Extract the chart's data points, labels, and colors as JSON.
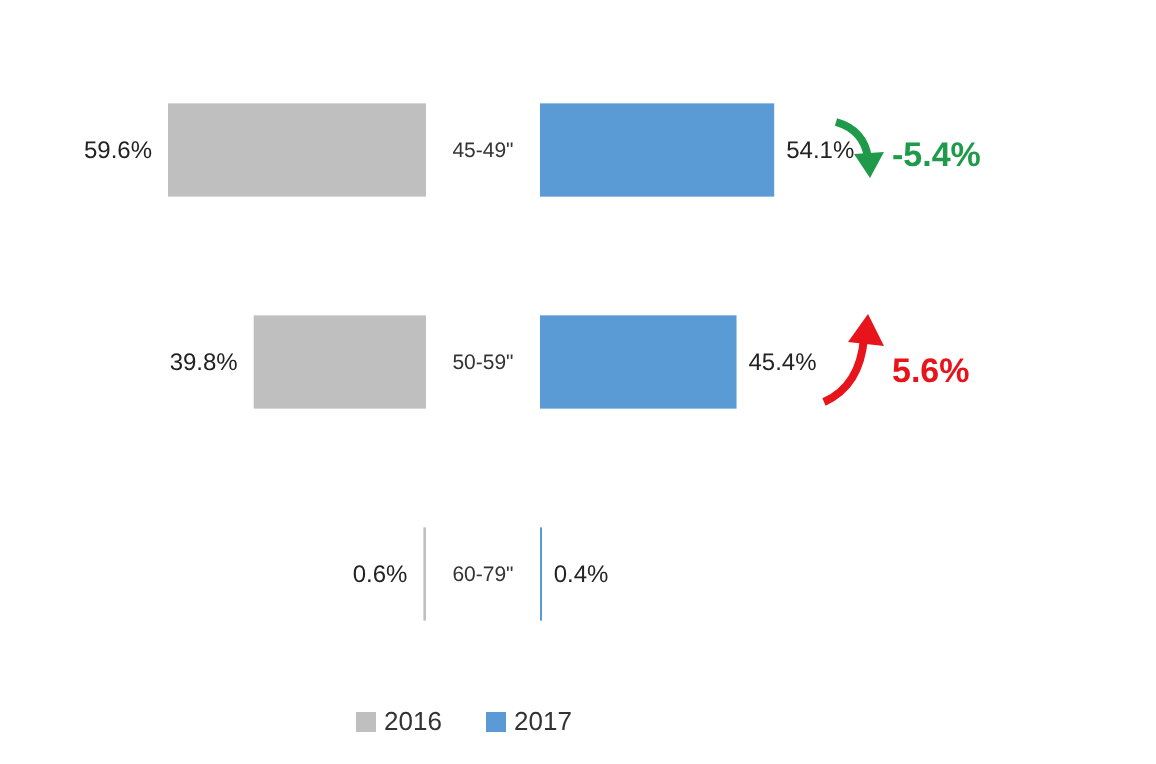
{
  "chart_data": [
    {
      "type": "bar",
      "orientation": "horizontal",
      "categories": [
        "45-49\"",
        "50-59\"",
        "60-79\""
      ],
      "series": [
        {
          "name": "2016",
          "color": "#bfbfbf",
          "values": [
            59.6,
            39.8,
            0.6
          ],
          "value_labels": [
            "59.6%",
            "39.8%",
            "0.6%"
          ]
        }
      ],
      "legend": "bottom"
    },
    {
      "type": "bar",
      "orientation": "horizontal",
      "categories": [
        null,
        null,
        null
      ],
      "series": [
        {
          "name": "2017",
          "color": "#5b9bd5",
          "values": [
            54.1,
            45.4,
            0.4
          ],
          "value_labels": [
            "54.1%",
            "45.4%",
            "0.4%"
          ]
        }
      ],
      "annotations": [
        "-5.4%",
        "5.6%"
      ],
      "legend": "bottom"
    }
  ]
}
